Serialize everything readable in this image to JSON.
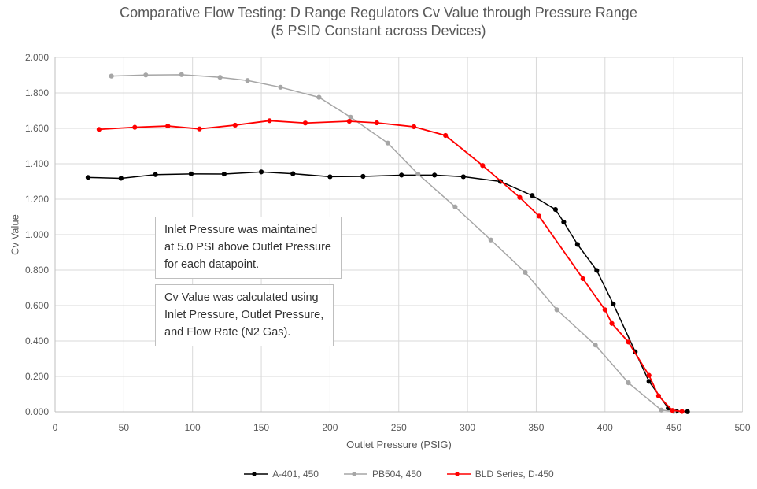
{
  "chart_data": {
    "type": "line",
    "title": "Comparative Flow Testing: D Range Regulators Cv Value through Pressure Range",
    "subtitle": "(5 PSID Constant across Devices)",
    "xlabel": "Outlet Pressure (PSIG)",
    "ylabel": "Cv Value",
    "xlim": [
      0,
      500
    ],
    "ylim": [
      0,
      2.0
    ],
    "grid": true,
    "legend_position": "bottom",
    "x_ticks": [
      0,
      50,
      100,
      150,
      200,
      250,
      300,
      350,
      400,
      450,
      500
    ],
    "y_ticks": [
      "0.000",
      "0.200",
      "0.400",
      "0.600",
      "0.800",
      "1.000",
      "1.200",
      "1.400",
      "1.600",
      "1.800",
      "2.000"
    ],
    "series": [
      {
        "name": "A-401, 450",
        "color": "#000000",
        "marker": "circle",
        "points": [
          [
            24,
            1.323
          ],
          [
            48,
            1.318
          ],
          [
            73,
            1.339
          ],
          [
            99,
            1.343
          ],
          [
            123,
            1.342
          ],
          [
            150,
            1.354
          ],
          [
            173,
            1.344
          ],
          [
            200,
            1.327
          ],
          [
            224,
            1.329
          ],
          [
            252,
            1.336
          ],
          [
            276,
            1.336
          ],
          [
            297,
            1.327
          ],
          [
            324,
            1.3
          ],
          [
            347,
            1.221
          ],
          [
            364,
            1.142
          ],
          [
            370,
            1.071
          ],
          [
            380,
            0.945
          ],
          [
            394,
            0.798
          ],
          [
            406,
            0.609
          ],
          [
            422,
            0.339
          ],
          [
            432,
            0.172
          ],
          [
            446,
            0.021
          ],
          [
            452,
            0.004
          ],
          [
            460,
            0.001
          ]
        ]
      },
      {
        "name": "PB504, 450",
        "color": "#A6A6A6",
        "marker": "circle",
        "points": [
          [
            41,
            1.895
          ],
          [
            66,
            1.901
          ],
          [
            92,
            1.903
          ],
          [
            120,
            1.888
          ],
          [
            140,
            1.87
          ],
          [
            164,
            1.832
          ],
          [
            192,
            1.775
          ],
          [
            215,
            1.663
          ],
          [
            242,
            1.517
          ],
          [
            264,
            1.342
          ],
          [
            291,
            1.157
          ],
          [
            317,
            0.97
          ],
          [
            342,
            0.787
          ],
          [
            365,
            0.576
          ],
          [
            393,
            0.377
          ],
          [
            417,
            0.164
          ],
          [
            441,
            0.01
          ],
          [
            450,
            0.002
          ]
        ]
      },
      {
        "name": "BLD Series, D-450",
        "color": "#FF0000",
        "marker": "circle",
        "points": [
          [
            32,
            1.594
          ],
          [
            58,
            1.606
          ],
          [
            82,
            1.613
          ],
          [
            105,
            1.597
          ],
          [
            131,
            1.618
          ],
          [
            156,
            1.643
          ],
          [
            182,
            1.63
          ],
          [
            214,
            1.64
          ],
          [
            234,
            1.631
          ],
          [
            261,
            1.609
          ],
          [
            284,
            1.56
          ],
          [
            311,
            1.39
          ],
          [
            338,
            1.21
          ],
          [
            352,
            1.105
          ],
          [
            384,
            0.751
          ],
          [
            400,
            0.576
          ],
          [
            405,
            0.499
          ],
          [
            417,
            0.394
          ],
          [
            432,
            0.206
          ],
          [
            439,
            0.09
          ],
          [
            449,
            0.008
          ],
          [
            456,
            0.002
          ]
        ]
      }
    ]
  },
  "annotations": [
    {
      "text": "Inlet Pressure was maintained\nat 5.0 PSI above Outlet Pressure\nfor each datapoint."
    },
    {
      "text": "Cv Value was calculated using\nInlet Pressure, Outlet Pressure,\nand Flow Rate (N2 Gas)."
    }
  ],
  "colors": {
    "gridline": "#D9D9D9",
    "axis_line": "#BFBFBF",
    "text_gray": "#595959",
    "background": "#FFFFFF"
  }
}
